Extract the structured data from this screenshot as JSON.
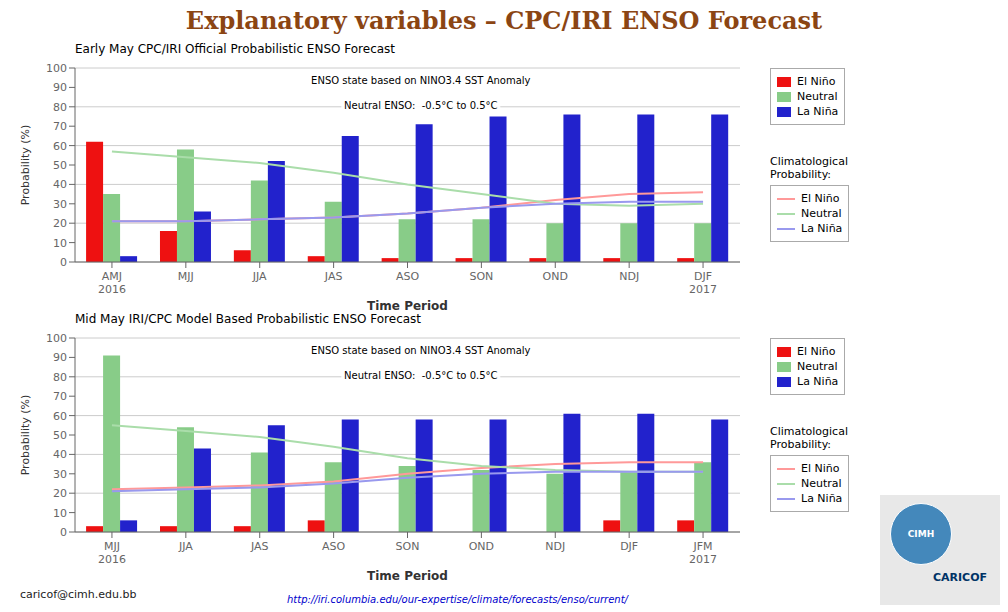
{
  "title": "Explanatory variables – CPC/IRI ENSO Forecast",
  "color": "#8B4513",
  "annotations": [
    "caricof@cimh.edu.bb",
    "http://iri.columbia.edu/our-expertise/climate/forecasts/enso/current/",
    "CIMH",
    "CARICOF"
  ],
  "chart_data": [
    {
      "type": "bar",
      "title": "Early May CPC/IRI Official Probabilistic ENSO Forecast",
      "annotations": [
        "ENSO state based on NINO3.4 SST Anomaly",
        "Neutral ENSO:  -0.5°C to 0.5°C",
        "Climatological\nProbability:"
      ],
      "xlabel": "Time Period",
      "ylabel": "Probability (%)",
      "categories": [
        "AMJ\n2016",
        "MJJ",
        "JJA",
        "JAS",
        "ASO",
        "SON",
        "OND",
        "NDJ",
        "DJF\n2017"
      ],
      "series": [
        {
          "name": "El Niño",
          "type": "bar",
          "color": "#EE1111",
          "values": [
            62,
            16,
            6,
            3,
            2,
            2,
            2,
            2,
            2
          ]
        },
        {
          "name": "Neutral",
          "type": "bar",
          "color": "#88CC88",
          "values": [
            35,
            58,
            42,
            31,
            22,
            22,
            20,
            20,
            20
          ]
        },
        {
          "name": "La Niña",
          "type": "bar",
          "color": "#2222CC",
          "values": [
            3,
            26,
            52,
            65,
            71,
            75,
            76,
            76,
            76
          ]
        },
        {
          "name": "El Niño",
          "type": "line",
          "color": "#FF9999",
          "values": [
            21,
            21,
            22,
            23,
            25,
            28,
            32,
            35,
            36
          ]
        },
        {
          "name": "Neutral",
          "type": "line",
          "color": "#AADDAA",
          "values": [
            57,
            54,
            51,
            46,
            40,
            35,
            30,
            29,
            30
          ]
        },
        {
          "name": "La Niña",
          "type": "line",
          "color": "#9999EE",
          "values": [
            21,
            21,
            22,
            23,
            25,
            28,
            30,
            31,
            31
          ]
        }
      ],
      "ylim": [
        0,
        100
      ],
      "yticks": [
        0,
        10,
        20,
        30,
        40,
        50,
        60,
        70,
        80,
        90,
        100
      ],
      "grid": true,
      "legend": "right"
    },
    {
      "type": "bar",
      "title": "Mid May IRI/CPC Model Based Probabilistic ENSO Forecast",
      "annotations": [
        "ENSO state based on NINO3.4 SST Anomaly",
        "Neutral ENSO:  -0.5°C to 0.5°C",
        "Climatological\nProbability:"
      ],
      "xlabel": "Time Period",
      "ylabel": "Probability (%)",
      "categories": [
        "MJJ\n2016",
        "JJA",
        "JAS",
        "ASO",
        "SON",
        "OND",
        "NDJ",
        "DJF",
        "JFM\n2017"
      ],
      "series": [
        {
          "name": "El Niño",
          "type": "bar",
          "color": "#EE1111",
          "values": [
            3,
            3,
            3,
            6,
            0,
            0,
            0,
            6,
            6
          ]
        },
        {
          "name": "Neutral",
          "type": "bar",
          "color": "#88CC88",
          "values": [
            91,
            54,
            41,
            36,
            34,
            32,
            30,
            31,
            36
          ]
        },
        {
          "name": "La Niña",
          "type": "bar",
          "color": "#2222CC",
          "values": [
            6,
            43,
            55,
            58,
            58,
            58,
            61,
            61,
            58
          ]
        },
        {
          "name": "El Niño",
          "type": "line",
          "color": "#FF9999",
          "values": [
            22,
            23,
            24,
            26,
            30,
            33,
            35,
            36,
            36
          ]
        },
        {
          "name": "Neutral",
          "type": "line",
          "color": "#AADDAA",
          "values": [
            55,
            52,
            49,
            44,
            38,
            34,
            32,
            31,
            31
          ]
        },
        {
          "name": "La Niña",
          "type": "line",
          "color": "#9999EE",
          "values": [
            21,
            22,
            23,
            25,
            28,
            30,
            31,
            31,
            31
          ]
        }
      ],
      "ylim": [
        0,
        100
      ],
      "yticks": [
        0,
        10,
        20,
        30,
        40,
        50,
        60,
        70,
        80,
        90,
        100
      ],
      "grid": true,
      "legend": "right"
    }
  ]
}
